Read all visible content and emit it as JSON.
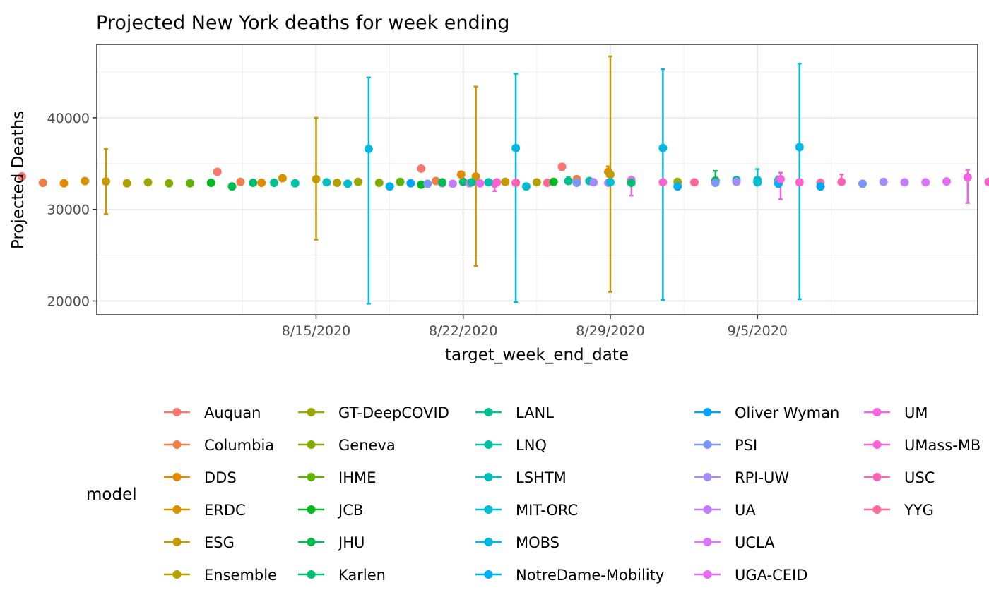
{
  "chart_data": {
    "type": "scatter",
    "title": "Projected New York deaths for week ending",
    "xlabel": "target_week_end_date",
    "ylabel": "Projected Deaths",
    "ylim": [
      18500,
      48000
    ],
    "xlim": [
      "2020-08-01",
      "2020-09-15"
    ],
    "x_ticks": [
      {
        "date": "2020-08-15",
        "label": "8/15/2020"
      },
      {
        "date": "2020-08-22",
        "label": "8/22/2020"
      },
      {
        "date": "2020-08-29",
        "label": "8/29/2020"
      },
      {
        "date": "2020-09-05",
        "label": "9/5/2020"
      }
    ],
    "y_ticks": [
      20000,
      30000,
      40000
    ],
    "grid": true,
    "legend": {
      "title": "model",
      "position": "bottom",
      "entries": [
        {
          "name": "Auquan",
          "color": "#F8766D"
        },
        {
          "name": "Columbia",
          "color": "#EF7F48"
        },
        {
          "name": "DDS",
          "color": "#E38900"
        },
        {
          "name": "ERDC",
          "color": "#D59100"
        },
        {
          "name": "ESG",
          "color": "#C49A00"
        },
        {
          "name": "Ensemble",
          "color": "#B2A100"
        },
        {
          "name": "GT-DeepCOVID",
          "color": "#9CA700"
        },
        {
          "name": "Geneva",
          "color": "#82AD00"
        },
        {
          "name": "IHME",
          "color": "#5EB300"
        },
        {
          "name": "JCB",
          "color": "#00B81F"
        },
        {
          "name": "JHU",
          "color": "#00BB4E"
        },
        {
          "name": "Karlen",
          "color": "#00BE70"
        },
        {
          "name": "LANL",
          "color": "#00C08E"
        },
        {
          "name": "LNQ",
          "color": "#00C1A7"
        },
        {
          "name": "LSHTM",
          "color": "#00C0BE"
        },
        {
          "name": "MIT-ORC",
          "color": "#00BDD2"
        },
        {
          "name": "MOBS",
          "color": "#00B8E3"
        },
        {
          "name": "NotreDame-Mobility",
          "color": "#00B0F6"
        },
        {
          "name": "Oliver Wyman",
          "color": "#00A5FF"
        },
        {
          "name": "PSI",
          "color": "#7997FF"
        },
        {
          "name": "RPI-UW",
          "color": "#A58AFF"
        },
        {
          "name": "UA",
          "color": "#C37EFF"
        },
        {
          "name": "UCLA",
          "color": "#D874FD"
        },
        {
          "name": "UGA-CEID",
          "color": "#E76BF3"
        },
        {
          "name": "UM",
          "color": "#F464E1"
        },
        {
          "name": "UMass-MB",
          "color": "#FC61D2"
        },
        {
          "name": "USC",
          "color": "#FF63B6"
        },
        {
          "name": "YYG",
          "color": "#FF6A98"
        }
      ]
    },
    "points": [
      {
        "model": "Auquan",
        "x": "2020-08-01",
        "y": 33600
      },
      {
        "model": "Columbia",
        "x": "2020-08-02",
        "y": 32900
      },
      {
        "model": "DDS",
        "x": "2020-08-03",
        "y": 32850
      },
      {
        "model": "ERDC",
        "x": "2020-08-04",
        "y": 33100
      },
      {
        "model": "ESG",
        "x": "2020-08-05",
        "y": 33050,
        "lo": 29500,
        "hi": 36600
      },
      {
        "model": "Ensemble",
        "x": "2020-08-06",
        "y": 32850
      },
      {
        "model": "GT-DeepCOVID",
        "x": "2020-08-07",
        "y": 32950
      },
      {
        "model": "Geneva",
        "x": "2020-08-08",
        "y": 32850
      },
      {
        "model": "IHME",
        "x": "2020-08-09",
        "y": 32850
      },
      {
        "model": "JCB",
        "x": "2020-08-10",
        "y": 32900
      },
      {
        "model": "Auquan",
        "x": "2020-08-10.3",
        "y": 34100
      },
      {
        "model": "JHU",
        "x": "2020-08-11",
        "y": 32500
      },
      {
        "model": "Columbia",
        "x": "2020-08-11.4",
        "y": 33000
      },
      {
        "model": "Karlen",
        "x": "2020-08-12",
        "y": 32900
      },
      {
        "model": "DDS",
        "x": "2020-08-12.4",
        "y": 32900
      },
      {
        "model": "LANL",
        "x": "2020-08-13",
        "y": 32900
      },
      {
        "model": "ERDC",
        "x": "2020-08-13.4",
        "y": 33400
      },
      {
        "model": "LNQ",
        "x": "2020-08-14",
        "y": 32850
      },
      {
        "model": "ESG",
        "x": "2020-08-15",
        "y": 33300,
        "lo": 26700,
        "hi": 40000
      },
      {
        "model": "LSHTM",
        "x": "2020-08-15.5",
        "y": 32950
      },
      {
        "model": "Ensemble",
        "x": "2020-08-16",
        "y": 32900
      },
      {
        "model": "MIT-ORC",
        "x": "2020-08-16.5",
        "y": 32800
      },
      {
        "model": "GT-DeepCOVID",
        "x": "2020-08-17",
        "y": 33000
      },
      {
        "model": "MOBS",
        "x": "2020-08-17.5",
        "y": 36600,
        "lo": 19700,
        "hi": 44400
      },
      {
        "model": "Geneva",
        "x": "2020-08-18",
        "y": 32900
      },
      {
        "model": "NotreDame-Mobility",
        "x": "2020-08-18.5",
        "y": 32500
      },
      {
        "model": "IHME",
        "x": "2020-08-19",
        "y": 33000
      },
      {
        "model": "Oliver Wyman",
        "x": "2020-08-19.5",
        "y": 32850
      },
      {
        "model": "Auquan",
        "x": "2020-08-20",
        "y": 34450
      },
      {
        "model": "JCB",
        "x": "2020-08-20",
        "y": 32700
      },
      {
        "model": "PSI",
        "x": "2020-08-20.3",
        "y": 32800
      },
      {
        "model": "Columbia",
        "x": "2020-08-20.7",
        "y": 33100
      },
      {
        "model": "RPI-UW",
        "x": "2020-08-21",
        "y": 32850
      },
      {
        "model": "JHU",
        "x": "2020-08-21",
        "y": 32950
      },
      {
        "model": "UA",
        "x": "2020-08-21.5",
        "y": 32800
      },
      {
        "model": "Karlen",
        "x": "2020-08-22",
        "y": 33000
      },
      {
        "model": "DDS",
        "x": "2020-08-21.9",
        "y": 33800
      },
      {
        "model": "UCLA",
        "x": "2020-08-22.3",
        "y": 32850
      },
      {
        "model": "ERDC",
        "x": "2020-08-22.6",
        "y": 33600,
        "lo": 23800,
        "hi": 43400
      },
      {
        "model": "LANL",
        "x": "2020-08-22.4",
        "y": 32950
      },
      {
        "model": "UGA-CEID",
        "x": "2020-08-22.8",
        "y": 32850
      },
      {
        "model": "UM",
        "x": "2020-08-23.5",
        "y": 32800,
        "lo": 32000,
        "hi": 33100
      },
      {
        "model": "UMass-MB",
        "x": "2020-08-23.6",
        "y": 32950
      },
      {
        "model": "LNQ",
        "x": "2020-08-23.2",
        "y": 32950
      },
      {
        "model": "ESG",
        "x": "2020-08-24",
        "y": 33000
      },
      {
        "model": "MOBS",
        "x": "2020-08-24.5",
        "y": 36700,
        "lo": 19900,
        "hi": 44800
      },
      {
        "model": "USC",
        "x": "2020-08-24.5",
        "y": 32900
      },
      {
        "model": "MIT-ORC",
        "x": "2020-08-25",
        "y": 32500
      },
      {
        "model": "YYG",
        "x": "2020-08-26",
        "y": 32900
      },
      {
        "model": "Ensemble",
        "x": "2020-08-25.5",
        "y": 32950
      },
      {
        "model": "Auquan",
        "x": "2020-08-26.7",
        "y": 34650
      },
      {
        "model": "JCB",
        "x": "2020-08-26.3",
        "y": 33000
      },
      {
        "model": "LANL",
        "x": "2020-08-27",
        "y": 33100,
        "lo": 32800,
        "hi": 33500
      },
      {
        "model": "Columbia",
        "x": "2020-08-27.4",
        "y": 33300
      },
      {
        "model": "PSI",
        "x": "2020-08-27.4",
        "y": 32900
      },
      {
        "model": "LNQ",
        "x": "2020-08-28",
        "y": 33100
      },
      {
        "model": "RPI-UW",
        "x": "2020-08-28.2",
        "y": 32950
      },
      {
        "model": "ERDC",
        "x": "2020-08-28.9",
        "y": 34100,
        "lo": 33600,
        "hi": 34700
      },
      {
        "model": "UA",
        "x": "2020-08-28.9",
        "y": 32900
      },
      {
        "model": "ESG",
        "x": "2020-08-29",
        "y": 33800,
        "lo": 21000,
        "hi": 46700
      },
      {
        "model": "MIT-ORC",
        "x": "2020-08-29",
        "y": 32950
      },
      {
        "model": "UGA-CEID",
        "x": "2020-08-30",
        "y": 33200,
        "lo": 31500,
        "hi": 33500
      },
      {
        "model": "Karlen",
        "x": "2020-08-30",
        "y": 32900
      },
      {
        "model": "MOBS",
        "x": "2020-08-31.5",
        "y": 36700,
        "lo": 20100,
        "hi": 45300
      },
      {
        "model": "UMass-MB",
        "x": "2020-08-31.5",
        "y": 32950
      },
      {
        "model": "GT-DeepCOVID",
        "x": "2020-08-32.2",
        "y": 33000
      },
      {
        "model": "NotreDame-Mobility",
        "x": "2020-08-32.2",
        "y": 32500
      },
      {
        "model": "YYG",
        "x": "2020-08-33",
        "y": 32950
      },
      {
        "model": "JHU",
        "x": "2020-08-34",
        "y": 33150,
        "lo": 32800,
        "hi": 34200
      },
      {
        "model": "PSI",
        "x": "2020-08-34",
        "y": 32900
      },
      {
        "model": "LANL",
        "x": "2020-08-35",
        "y": 33200
      },
      {
        "model": "RPI-UW",
        "x": "2020-08-35",
        "y": 33000
      },
      {
        "model": "LSHTM",
        "x": "2020-08-36",
        "y": 33200,
        "lo": 32900,
        "hi": 33500
      },
      {
        "model": "UA",
        "x": "2020-08-36",
        "y": 32950
      },
      {
        "model": "LNQ",
        "x": "2020-08-37",
        "y": 33200,
        "lo": 32900,
        "hi": 33600
      },
      {
        "model": "UCLA",
        "x": "2020-08-37",
        "y": 32950
      },
      {
        "model": "MIT-ORC",
        "x": "2020-09-05",
        "y": 32950,
        "lo": 32600,
        "hi": 34400
      },
      {
        "model": "NotreDame-Mobility",
        "x": "2020-09-06",
        "y": 32800
      },
      {
        "model": "UM",
        "x": "2020-09-06.1",
        "y": 33300,
        "lo": 31100,
        "hi": 34000
      },
      {
        "model": "MOBS",
        "x": "2020-09-07",
        "y": 36800,
        "lo": 20200,
        "hi": 45900
      },
      {
        "model": "UMass-MB",
        "x": "2020-09-07",
        "y": 32950
      },
      {
        "model": "YYG",
        "x": "2020-09-08",
        "y": 32900
      },
      {
        "model": "Oliver Wyman",
        "x": "2020-09-08",
        "y": 32500
      },
      {
        "model": "USC",
        "x": "2020-09-09",
        "y": 33000,
        "lo": 32700,
        "hi": 33800
      },
      {
        "model": "PSI",
        "x": "2020-09-10",
        "y": 32800
      },
      {
        "model": "RPI-UW",
        "x": "2020-09-11",
        "y": 33000
      },
      {
        "model": "UA",
        "x": "2020-09-12",
        "y": 32950
      },
      {
        "model": "UCLA",
        "x": "2020-09-13",
        "y": 32950
      },
      {
        "model": "UGA-CEID",
        "x": "2020-09-14",
        "y": 33050
      },
      {
        "model": "UM",
        "x": "2020-09-15",
        "y": 33500,
        "lo": 30700,
        "hi": 34300
      },
      {
        "model": "UMass-MB",
        "x": "2020-09-16",
        "y": 33000
      },
      {
        "model": "USC",
        "x": "2020-09-17",
        "y": 32950
      },
      {
        "model": "YYG",
        "x": "2020-09-18",
        "y": 33000,
        "lo": 32700,
        "hi": 34100
      }
    ]
  }
}
